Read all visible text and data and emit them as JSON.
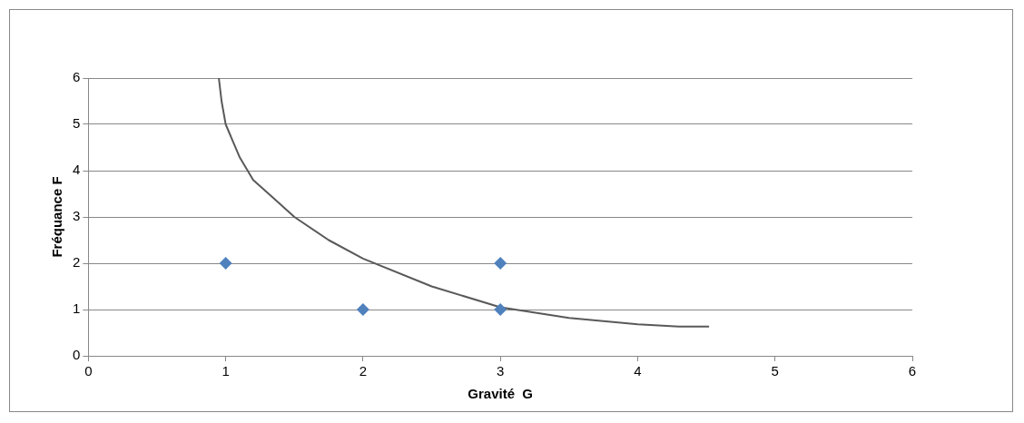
{
  "chart_data": {
    "type": "scatter",
    "xlabel": "Gravité  G",
    "ylabel": "Fréquance F",
    "xlim": [
      0,
      6
    ],
    "xticks": [
      0,
      1,
      2,
      3,
      4,
      5,
      6
    ],
    "ylim": [
      0,
      6
    ],
    "yticks": [
      0,
      1,
      2,
      3,
      4,
      5,
      6
    ],
    "grid": "y",
    "legend": false,
    "marker": "diamond",
    "series": [
      {
        "type": "scatter",
        "color": "#4f81bd",
        "x": [
          1,
          2,
          3,
          3
        ],
        "values": [
          2,
          1,
          2,
          1
        ]
      },
      {
        "type": "line",
        "color": "#595959",
        "marker": "none",
        "x": [
          0.95,
          0.97,
          1.0,
          1.1,
          1.2,
          1.35,
          1.5,
          1.75,
          2.0,
          2.5,
          3.0,
          3.5,
          4.0,
          4.3,
          4.52
        ],
        "values": [
          6,
          5.5,
          5.0,
          4.3,
          3.8,
          3.4,
          3.0,
          2.5,
          2.1,
          1.5,
          1.05,
          0.82,
          0.68,
          0.63,
          0.63
        ]
      }
    ]
  }
}
